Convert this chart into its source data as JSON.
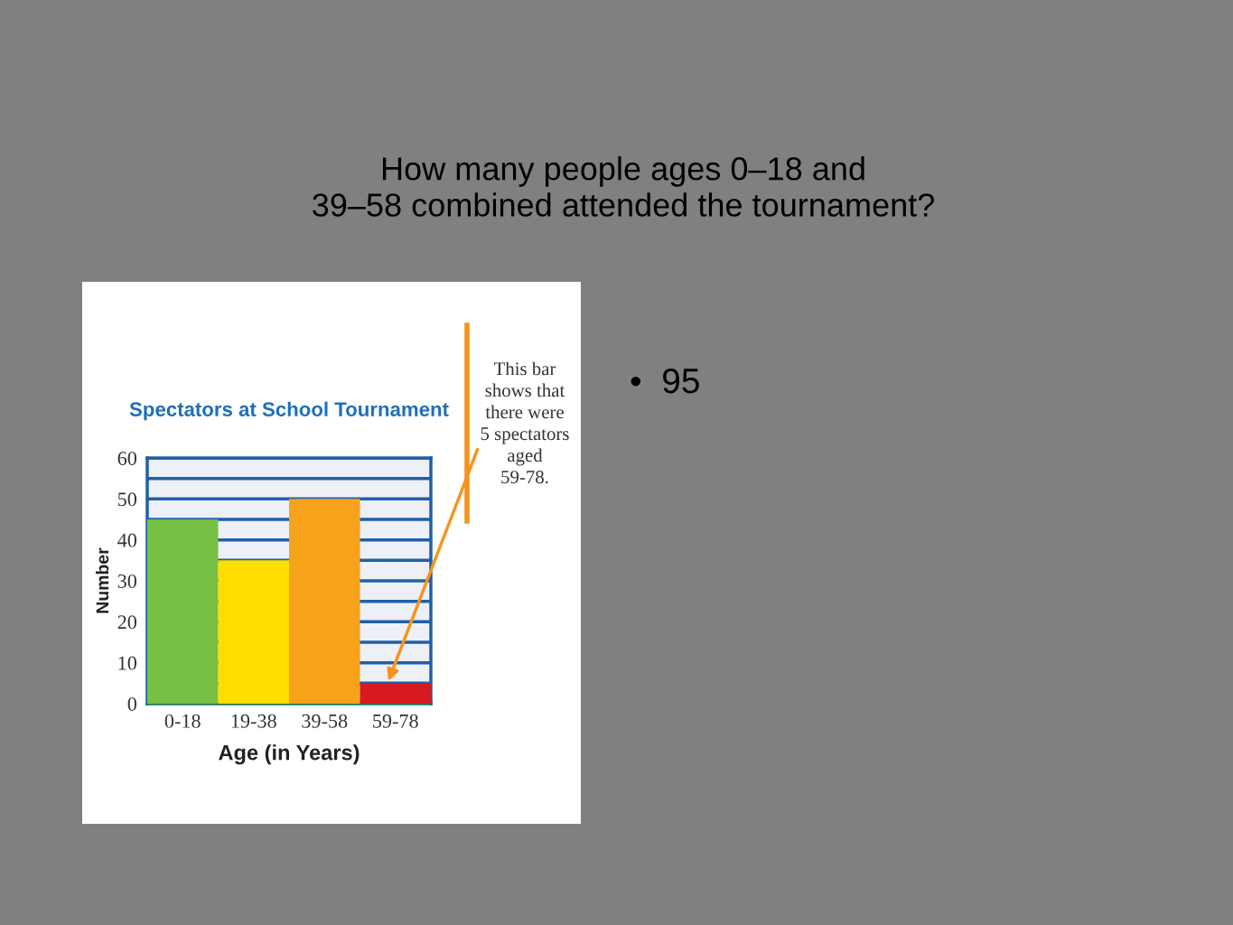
{
  "chart_data": {
    "type": "bar",
    "title": "Spectators at School Tournament",
    "xlabel": "Age (in Years)",
    "ylabel": "Number",
    "categories": [
      "0-18",
      "19-38",
      "39-58",
      "59-78"
    ],
    "values": [
      45,
      35,
      50,
      5
    ],
    "colors": [
      "#77c043",
      "#ffdd00",
      "#f7a21b",
      "#d71920"
    ],
    "ylim": [
      0,
      60
    ],
    "yticks": [
      0,
      {
        "value": 5,
        "label": null
      },
      10,
      {
        "value": 15,
        "label": null
      },
      20,
      {
        "value": 25,
        "label": null
      },
      30,
      {
        "value": 35,
        "label": null
      },
      40,
      {
        "value": 45,
        "label": null
      },
      50,
      {
        "value": 55,
        "label": null
      },
      60
    ],
    "grid": "y",
    "annotations": [
      "How many people ages 0–18 and\n39–58 combined attended the tournament?",
      {
        "text": "This bar\nshows that\nthere were\n5 spectators\naged\n59-78.",
        "x": "59-78",
        "y": 5
      },
      "•  95"
    ]
  }
}
